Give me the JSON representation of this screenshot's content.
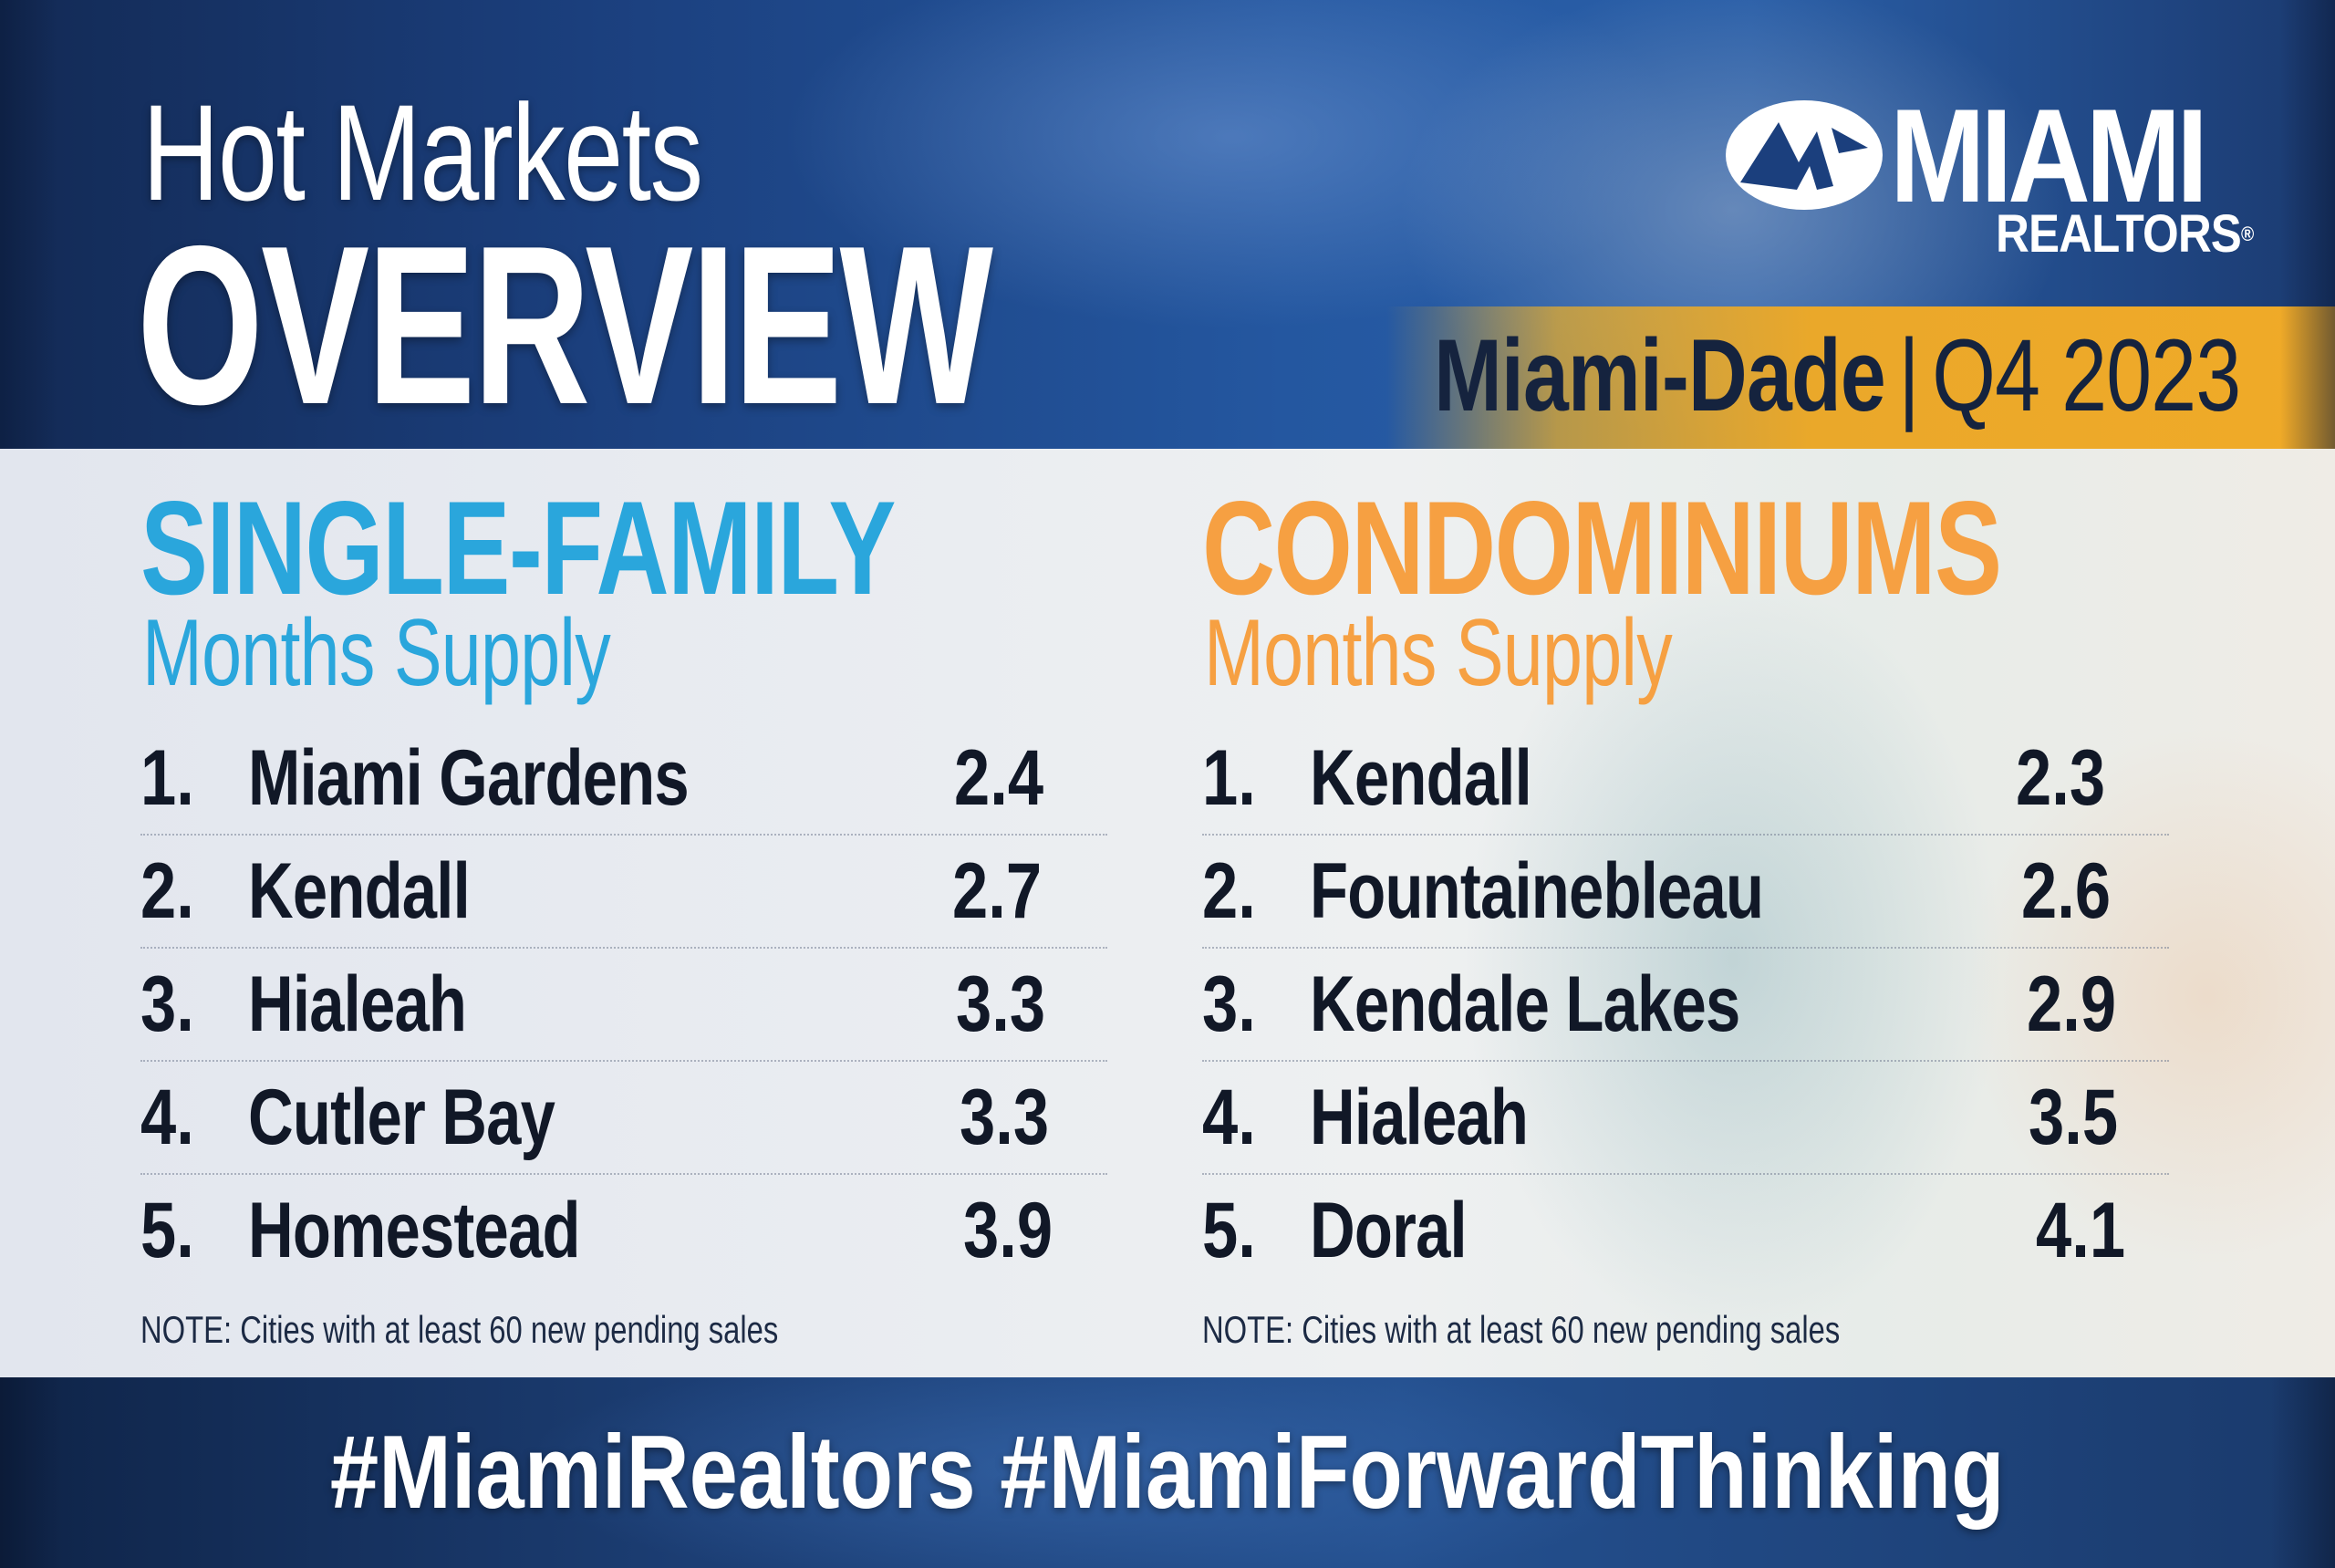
{
  "header": {
    "title_top": "Hot Markets",
    "title_main": "OVERVIEW",
    "region": "Miami-Dade",
    "region_separator": "|",
    "period": "Q4 2023"
  },
  "logo": {
    "word": "MIAMI",
    "sub": "REALTORS",
    "registered": "®"
  },
  "single_family": {
    "title": "SINGLE-FAMILY",
    "subtitle": "Months Supply",
    "rows": [
      {
        "rank": "1.",
        "city": "Miami Gardens",
        "value": "2.4"
      },
      {
        "rank": "2.",
        "city": "Kendall",
        "value": "2.7"
      },
      {
        "rank": "3.",
        "city": "Hialeah",
        "value": "3.3"
      },
      {
        "rank": "4.",
        "city": "Cutler Bay",
        "value": "3.3"
      },
      {
        "rank": "5.",
        "city": "Homestead",
        "value": "3.9"
      }
    ],
    "note": "NOTE: Cities with at least 60 new pending sales"
  },
  "condominiums": {
    "title": "CONDOMINIUMS",
    "subtitle": "Months Supply",
    "rows": [
      {
        "rank": "1.",
        "city": "Kendall",
        "value": "2.3"
      },
      {
        "rank": "2.",
        "city": "Fountainebleau",
        "value": "2.6"
      },
      {
        "rank": "3.",
        "city": "Kendale Lakes",
        "value": "2.9"
      },
      {
        "rank": "4.",
        "city": "Hialeah",
        "value": "3.5"
      },
      {
        "rank": "5.",
        "city": "Doral",
        "value": "4.1"
      }
    ],
    "note": "NOTE: Cities with at least 60 new pending sales"
  },
  "footer": {
    "hashtags": "#MiamiRealtors #MiamiForwardThinking"
  },
  "colors": {
    "single_family_accent": "#2aa6dc",
    "condo_accent": "#f6a042",
    "region_bar": "#eaa82a",
    "header_blue": "#1b3f7d"
  }
}
